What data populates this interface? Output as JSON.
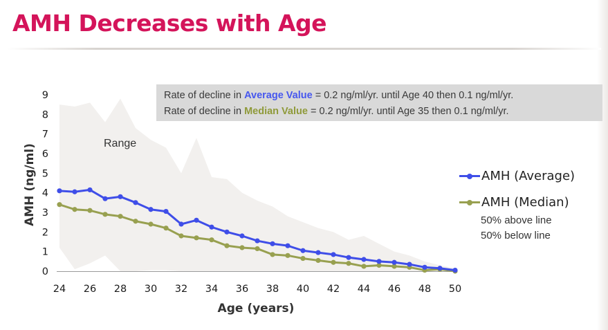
{
  "slide": {
    "title": "AMH Decreases with Age"
  },
  "note": {
    "avg_prefix": "Rate of decline in ",
    "avg_key": "Average Value",
    "avg_suffix": " = 0.2 ng/ml/yr. until Age 40 then 0.1 ng/ml/yr.",
    "med_prefix": "Rate of decline in ",
    "med_key": "Median Value",
    "med_suffix": " = 0.2 ng/ml/yr. until Age 35 then 0.1 ng/ml/yr."
  },
  "legend": {
    "average": "AMH (Average)",
    "median": "AMH (Median)",
    "note_above": "50% above line",
    "note_below": "50% below line"
  },
  "chart_data": {
    "type": "line",
    "xlabel": "Age (years)",
    "ylabel": "AMH (ng/ml)",
    "xlim": [
      24,
      50
    ],
    "ylim": [
      0,
      9
    ],
    "xticks": [
      24,
      26,
      28,
      30,
      32,
      34,
      36,
      38,
      40,
      42,
      44,
      46,
      48,
      50
    ],
    "yticks": [
      0,
      1,
      2,
      3,
      4,
      5,
      6,
      7,
      8,
      9
    ],
    "grid": false,
    "legend_position": "right",
    "x": [
      24,
      25,
      26,
      27,
      28,
      29,
      30,
      31,
      32,
      33,
      34,
      35,
      36,
      37,
      38,
      39,
      40,
      41,
      42,
      43,
      44,
      45,
      46,
      47,
      48,
      49,
      50
    ],
    "series": [
      {
        "name": "AMH (Average)",
        "color": "#3f4ee8",
        "values": [
          4.1,
          4.05,
          4.15,
          3.7,
          3.8,
          3.5,
          3.15,
          3.05,
          2.4,
          2.6,
          2.25,
          2.0,
          1.8,
          1.55,
          1.4,
          1.3,
          1.05,
          0.95,
          0.85,
          0.7,
          0.6,
          0.5,
          0.45,
          0.35,
          0.2,
          0.15,
          0.05
        ]
      },
      {
        "name": "AMH (Median)",
        "color": "#98a050",
        "values": [
          3.4,
          3.15,
          3.1,
          2.9,
          2.8,
          2.55,
          2.4,
          2.2,
          1.8,
          1.7,
          1.6,
          1.3,
          1.2,
          1.15,
          0.85,
          0.8,
          0.65,
          0.55,
          0.45,
          0.4,
          0.25,
          0.3,
          0.25,
          0.2,
          0.05,
          0.1,
          0.0
        ]
      }
    ],
    "range": {
      "label": "Range",
      "color": "#f2f0ee",
      "x": [
        24,
        25,
        26,
        27,
        28,
        29,
        30,
        31,
        32,
        33,
        34,
        35,
        36,
        37,
        38,
        39,
        40,
        41,
        42,
        43,
        44,
        45,
        46,
        47,
        48,
        49,
        50
      ],
      "upper": [
        8.5,
        8.4,
        8.6,
        7.6,
        8.8,
        7.3,
        6.7,
        6.3,
        5.0,
        6.8,
        4.8,
        4.7,
        4.0,
        3.6,
        3.3,
        2.8,
        2.5,
        2.2,
        2.0,
        1.6,
        1.8,
        1.4,
        1.0,
        0.8,
        0.5,
        0.3,
        0.15
      ],
      "lower": [
        1.2,
        0.1,
        0.4,
        0.8,
        0.0,
        0.0,
        0.05,
        0.05,
        0.0,
        0.0,
        0.0,
        0.0,
        0.0,
        0.0,
        0.0,
        0.0,
        0.0,
        0.0,
        0.0,
        0.0,
        0.0,
        0.0,
        0.0,
        0.0,
        0.0,
        0.0,
        0.0
      ]
    }
  }
}
